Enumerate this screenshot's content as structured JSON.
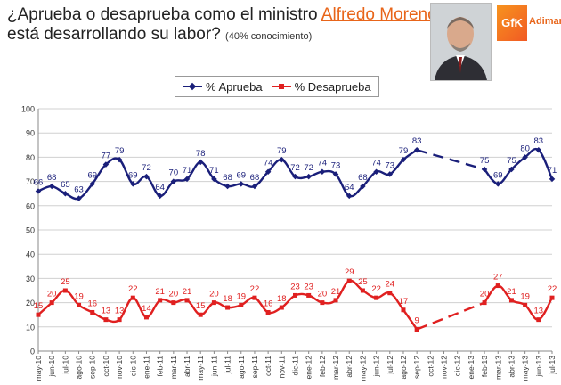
{
  "header": {
    "line1_prefix": "¿Aprueba o desaprueba como el ministro ",
    "minister_name": "Alfredo Moreno",
    "line2": "está desarrollando su labor?",
    "note": "(40% conocimiento)"
  },
  "logo": {
    "mark": "GfK",
    "text": "Adimark"
  },
  "colors": {
    "approve": "#1a1f7a",
    "disapprove": "#e02020",
    "accent": "#e8651a"
  },
  "chart_data": {
    "type": "line",
    "ylim": [
      0,
      100
    ],
    "yticks": [
      0,
      10,
      20,
      30,
      40,
      50,
      60,
      70,
      80,
      90,
      100
    ],
    "grid": true,
    "legend_position": "top",
    "categories": [
      "may-10",
      "jun-10",
      "jul-10",
      "ago-10",
      "sep-10",
      "oct-10",
      "nov-10",
      "dic-10",
      "ene-11",
      "feb-11",
      "mar-11",
      "abr-11",
      "may-11",
      "jun-11",
      "jul-11",
      "ago-11",
      "sep-11",
      "oct-11",
      "nov-11",
      "dic-11",
      "ene-12",
      "feb-12",
      "mar-12",
      "abr-12",
      "may-12",
      "jun-12",
      "jul-12",
      "ago-12",
      "sep-12",
      "oct-12",
      "nov-12",
      "dic-12",
      "ene-13",
      "feb-13",
      "mar-13",
      "abr-13",
      "may-13",
      "jun-13",
      "jul-13"
    ],
    "series": [
      {
        "name": "% Aprueba",
        "values": [
          66,
          68,
          65,
          63,
          69,
          77,
          79,
          69,
          72,
          64,
          70,
          71,
          78,
          71,
          68,
          69,
          68,
          74,
          79,
          72,
          72,
          74,
          73,
          64,
          68,
          74,
          73,
          79,
          83,
          null,
          null,
          null,
          null,
          75,
          69,
          75,
          80,
          83,
          71
        ]
      },
      {
        "name": "% Desaprueba",
        "values": [
          15,
          20,
          25,
          19,
          16,
          13,
          13,
          22,
          14,
          21,
          20,
          21,
          15,
          20,
          18,
          19,
          22,
          16,
          18,
          23,
          23,
          20,
          21,
          29,
          25,
          22,
          24,
          17,
          9,
          null,
          null,
          null,
          null,
          20,
          27,
          21,
          19,
          13,
          22
        ]
      }
    ]
  }
}
